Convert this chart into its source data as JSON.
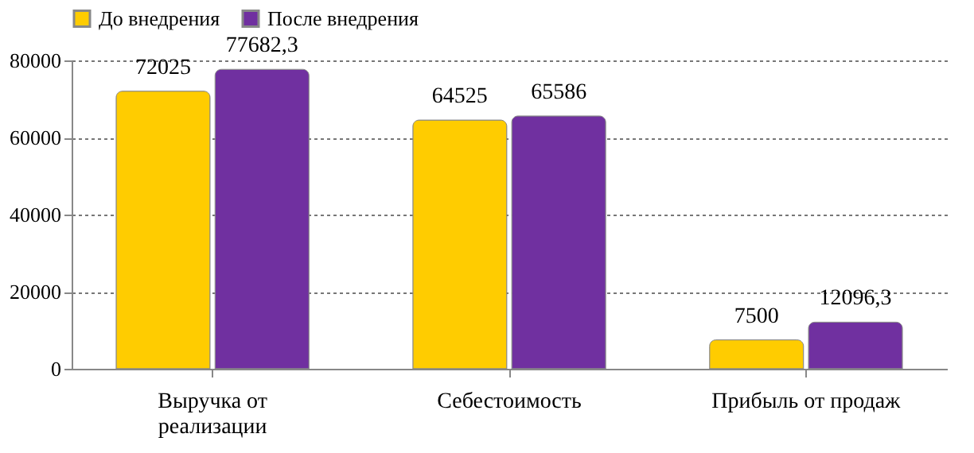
{
  "chart_data": {
    "type": "bar",
    "categories": [
      "Выручка от реализации",
      "Себестоимость",
      "Прибыль от продаж"
    ],
    "series": [
      {
        "name": "До внедрения",
        "color": "#ffcc00",
        "values": [
          72025,
          64525,
          7500
        ],
        "value_labels": [
          "72025",
          "64525",
          "7500"
        ]
      },
      {
        "name": "После внедрения",
        "color": "#7030a0",
        "values": [
          77682.3,
          65586,
          12096.3
        ],
        "value_labels": [
          "77682,3",
          "65586",
          "12096,3"
        ]
      }
    ],
    "ylim": [
      0,
      80000
    ],
    "yticks": [
      0,
      20000,
      40000,
      60000,
      80000
    ],
    "grid": "y",
    "line_style": "dotted",
    "legend": "top"
  }
}
